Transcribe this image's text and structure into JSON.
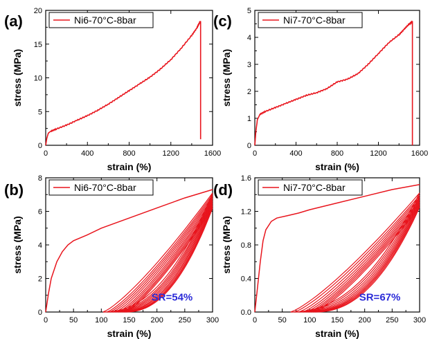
{
  "colors": {
    "curve": "#e8141c",
    "annotation": "#2b2bd8",
    "axis": "#000000"
  },
  "chart_data": [
    {
      "id": "a",
      "type": "line",
      "panel_label": "(a)",
      "xlabel": "strain (%)",
      "ylabel": "stress (MPa)",
      "xlim": [
        0,
        1600
      ],
      "ylim": [
        0,
        20
      ],
      "xticks": [
        0,
        400,
        800,
        1200,
        1600
      ],
      "yticks": [
        0,
        5,
        10,
        15,
        20
      ],
      "legend": "Ni6-70°C-8bar",
      "legend_position": "top-left",
      "annotation": "",
      "series": [
        {
          "name": "Ni6-70°C-8bar",
          "x": [
            0,
            10,
            25,
            50,
            100,
            200,
            300,
            400,
            500,
            600,
            700,
            800,
            900,
            1000,
            1100,
            1200,
            1300,
            1400,
            1450,
            1480,
            1485,
            1485
          ],
          "y": [
            0,
            1.0,
            1.8,
            2.1,
            2.4,
            3.0,
            3.7,
            4.4,
            5.2,
            6.1,
            7.1,
            8.1,
            9.1,
            10.1,
            11.3,
            12.7,
            14.4,
            16.3,
            17.4,
            18.3,
            18.3,
            0.9
          ]
        }
      ]
    },
    {
      "id": "c",
      "type": "line",
      "panel_label": "(c)",
      "xlabel": "strain (%)",
      "ylabel": "stress (MPa)",
      "xlim": [
        0,
        1600
      ],
      "ylim": [
        0,
        5
      ],
      "xticks": [
        0,
        400,
        800,
        1200,
        1600
      ],
      "yticks": [
        0,
        1,
        2,
        3,
        4,
        5
      ],
      "legend": "Ni7-70°C-8bar",
      "legend_position": "top-left",
      "annotation": "",
      "series": [
        {
          "name": "Ni7-70°C-8bar",
          "x": [
            0,
            10,
            25,
            50,
            100,
            200,
            300,
            400,
            500,
            600,
            700,
            800,
            900,
            1000,
            1100,
            1200,
            1300,
            1400,
            1450,
            1500,
            1530,
            1530
          ],
          "y": [
            0,
            0.5,
            0.95,
            1.15,
            1.25,
            1.4,
            1.55,
            1.7,
            1.85,
            1.95,
            2.1,
            2.35,
            2.45,
            2.65,
            3.0,
            3.4,
            3.8,
            4.1,
            4.3,
            4.5,
            4.6,
            0
          ]
        }
      ]
    },
    {
      "id": "b",
      "type": "line",
      "panel_label": "(b)",
      "xlabel": "strain (%)",
      "ylabel": "stress (MPa)",
      "xlim": [
        0,
        300
      ],
      "ylim": [
        0,
        8
      ],
      "xticks": [
        0,
        50,
        100,
        150,
        200,
        250,
        300
      ],
      "yticks": [
        0,
        2,
        4,
        6,
        8
      ],
      "legend": "Ni6-70°C-8bar",
      "legend_position": "top-left",
      "annotation": "SR=54%",
      "series": [
        {
          "name": "Ni6-70°C-8bar",
          "loading": {
            "x": [
              0,
              5,
              10,
              20,
              30,
              40,
              50,
              75,
              100,
              150,
              200,
              250,
              300
            ],
            "y": [
              0,
              1.1,
              2.0,
              3.0,
              3.6,
              4.0,
              4.25,
              4.6,
              5.0,
              5.6,
              6.2,
              6.8,
              7.3
            ]
          },
          "cycle_residual_strain": [
            103,
            110,
            115,
            120,
            125,
            130,
            134,
            138,
            141,
            144
          ],
          "cycle_peak_stress": [
            7.1,
            7.0,
            6.9,
            6.8,
            6.7,
            6.6,
            6.5,
            6.4,
            6.3,
            6.2
          ],
          "max_strain": 300
        }
      ]
    },
    {
      "id": "d",
      "type": "line",
      "panel_label": "(d)",
      "xlabel": "strain (%)",
      "ylabel": "stress (MPa)",
      "xlim": [
        0,
        300
      ],
      "ylim": [
        0,
        1.6
      ],
      "xticks": [
        0,
        50,
        100,
        150,
        200,
        250,
        300
      ],
      "yticks": [
        0.0,
        0.4,
        0.8,
        1.2,
        1.6
      ],
      "legend": "Ni7-70°C-8bar",
      "legend_position": "top-left",
      "annotation": "SR=67%",
      "series": [
        {
          "name": "Ni7-70°C-8bar",
          "loading": {
            "x": [
              0,
              5,
              10,
              15,
              20,
              30,
              40,
              60,
              80,
              100,
              150,
              200,
              250,
              300
            ],
            "y": [
              0,
              0.3,
              0.6,
              0.85,
              0.98,
              1.08,
              1.12,
              1.15,
              1.18,
              1.22,
              1.3,
              1.38,
              1.46,
              1.52
            ]
          },
          "cycle_residual_strain": [
            65,
            72,
            80,
            87,
            93,
            98,
            102,
            106,
            110
          ],
          "cycle_peak_stress": [
            1.42,
            1.39,
            1.37,
            1.35,
            1.33,
            1.31,
            1.29,
            1.27,
            1.25
          ],
          "max_strain": 300
        }
      ]
    }
  ]
}
